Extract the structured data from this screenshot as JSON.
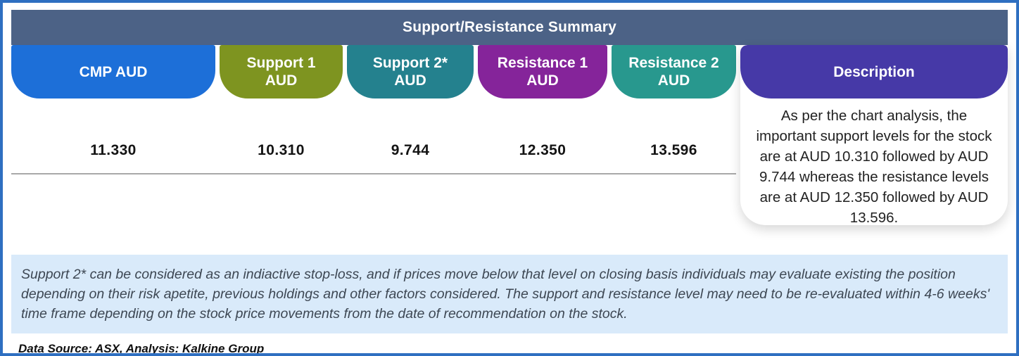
{
  "table": {
    "title": "Support/Resistance Summary",
    "columns": [
      {
        "id": "cmp-aud",
        "label": "CMP AUD",
        "value": "11.330",
        "color": "#1d6fd8"
      },
      {
        "id": "support-1-aud",
        "label": "Support 1\nAUD",
        "value": "10.310",
        "color": "#7e9420"
      },
      {
        "id": "support-2-aud",
        "label": "Support 2*\nAUD",
        "value": "9.744",
        "color": "#24818e"
      },
      {
        "id": "resistance-1-aud",
        "label": "Resistance 1\nAUD",
        "value": "12.350",
        "color": "#85249a"
      },
      {
        "id": "resistance-2-aud",
        "label": "Resistance 2\nAUD",
        "value": "13.596",
        "color": "#28988e"
      }
    ],
    "description": {
      "label": "Description",
      "color": "#4639a7",
      "text": "As per the chart analysis, the important support levels for the stock are at AUD 10.310 followed by AUD 9.744 whereas the resistance levels are at AUD 12.350 followed by AUD 13.596."
    }
  },
  "footnote": "Support 2* can be considered as an indiactive stop-loss, and if prices move below that level on closing basis individuals may evaluate existing the position depending on their risk apetite, previous holdings and other factors considered. The support and resistance level may need to be re-evaluated within 4-6 weeks' time frame depending on the stock price movements from  the date of recommendation on the stock.",
  "datasource": "Data Source: ASX, Analysis: Kalkine Group",
  "colors": {
    "border": "#2e6fc1",
    "header_bar": "#4c6286",
    "footnote_bg": "#d9eafa"
  },
  "chart_data": {
    "type": "table",
    "title": "Support/Resistance Summary",
    "columns": [
      "CMP AUD",
      "Support 1 AUD",
      "Support 2* AUD",
      "Resistance 1 AUD",
      "Resistance 2 AUD"
    ],
    "rows": [
      [
        11.33,
        10.31,
        9.744,
        12.35,
        13.596
      ]
    ]
  }
}
